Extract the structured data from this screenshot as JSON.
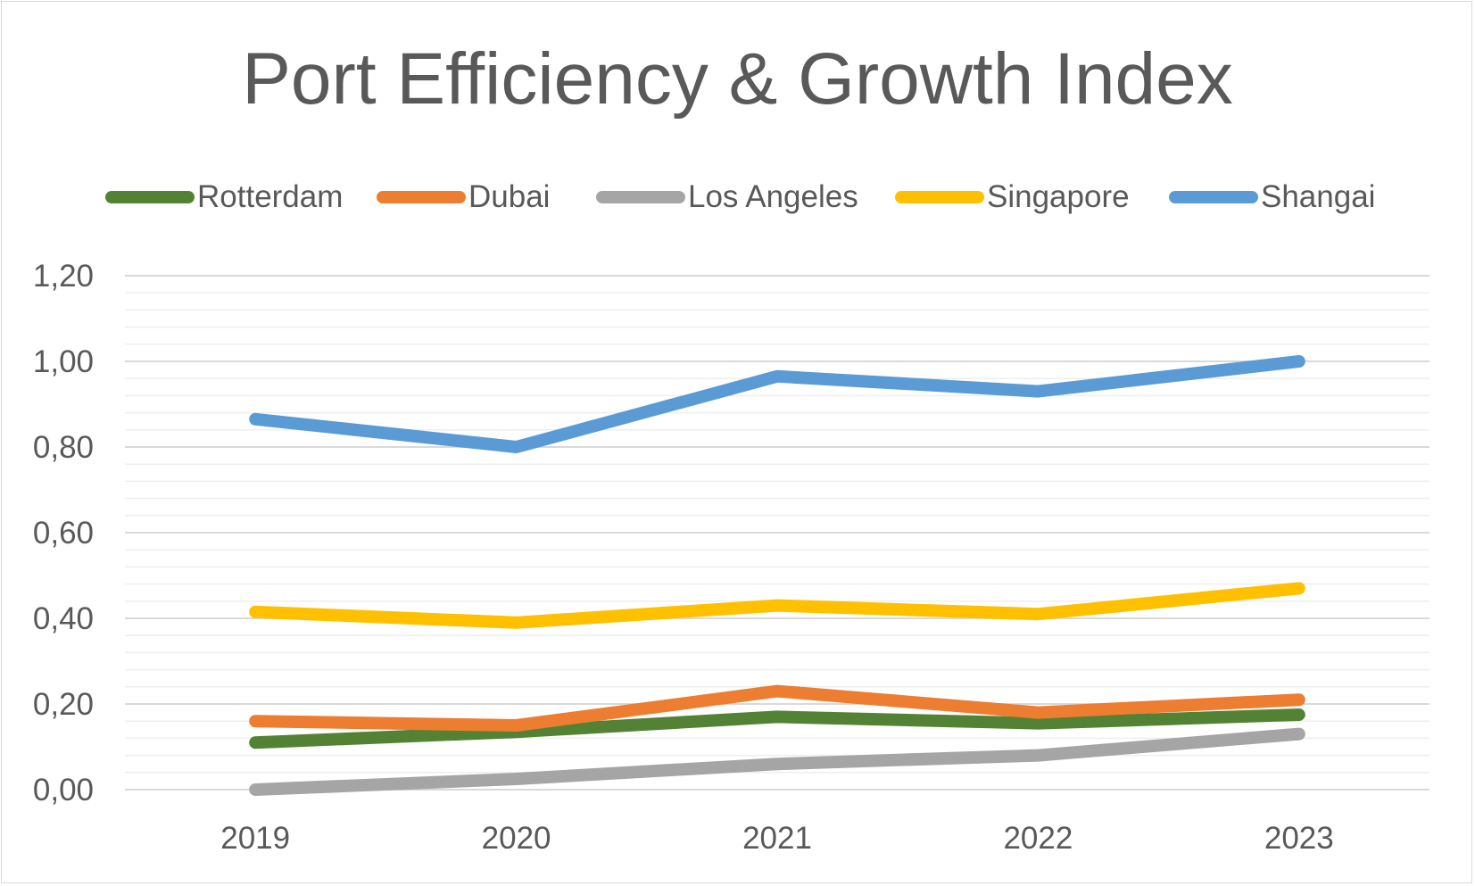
{
  "chart_data": {
    "type": "line",
    "title": "Port Efficiency & Growth Index",
    "xlabel": "",
    "ylabel": "",
    "categories": [
      "2019",
      "2020",
      "2021",
      "2022",
      "2023"
    ],
    "ylim": [
      0,
      1.2
    ],
    "y_ticks": [
      "0,00",
      "0,20",
      "0,40",
      "0,60",
      "0,80",
      "1,00",
      "1,20"
    ],
    "grid": true,
    "legend_position": "top",
    "series": [
      {
        "name": "Rotterdam",
        "color": "#548235",
        "values": [
          0.11,
          0.135,
          0.17,
          0.155,
          0.175
        ]
      },
      {
        "name": "Dubai",
        "color": "#ed7d31",
        "values": [
          0.16,
          0.15,
          0.23,
          0.18,
          0.21
        ]
      },
      {
        "name": "Los Angeles",
        "color": "#a5a5a5",
        "values": [
          0.0,
          0.025,
          0.06,
          0.08,
          0.13
        ]
      },
      {
        "name": "Singapore",
        "color": "#ffc000",
        "values": [
          0.415,
          0.39,
          0.43,
          0.41,
          0.47
        ]
      },
      {
        "name": "Shangai",
        "color": "#5b9bd5",
        "values": [
          0.865,
          0.8,
          0.965,
          0.93,
          1.0
        ]
      }
    ]
  }
}
